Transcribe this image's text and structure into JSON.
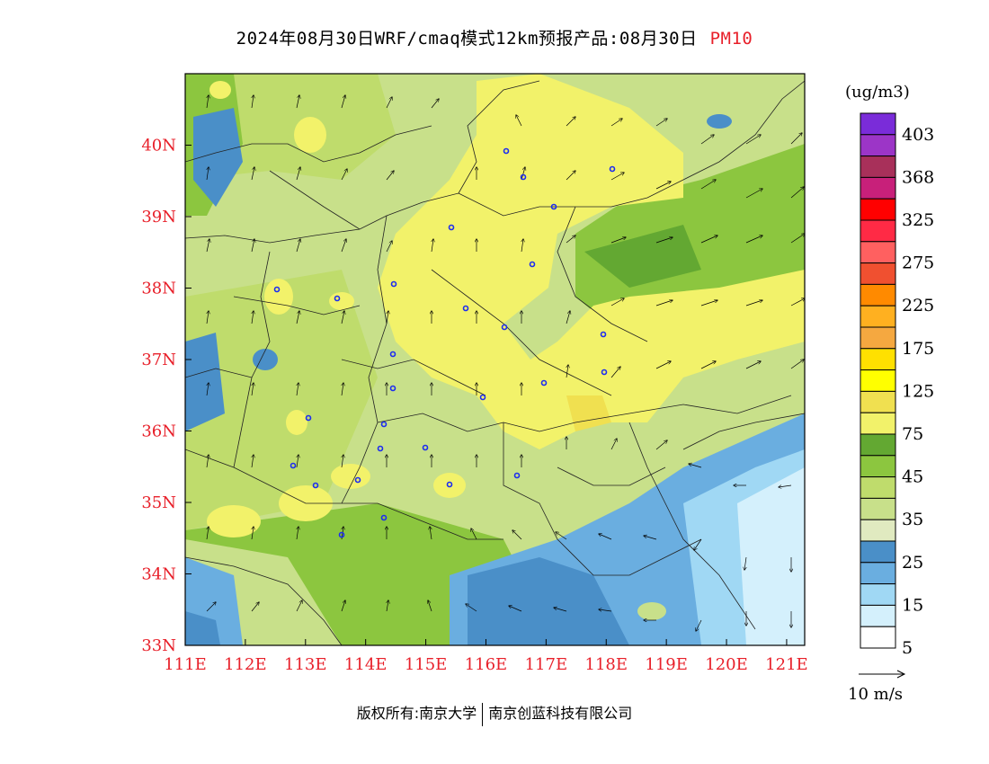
{
  "title": {
    "prefix": "2024年08月30日WRF/cmaq模式12km预报产品:08月30日",
    "variable": "PM10"
  },
  "map": {
    "lon_ticks": [
      "111E",
      "112E",
      "113E",
      "114E",
      "115E",
      "116E",
      "117E",
      "118E",
      "119E",
      "120E",
      "121E"
    ],
    "lat_ticks": [
      "33N",
      "34N",
      "35N",
      "36N",
      "37N",
      "38N",
      "39N",
      "40N"
    ],
    "lon_range": [
      111,
      121.3
    ],
    "lat_range": [
      33,
      41
    ]
  },
  "legend": {
    "unit": "(ug/m3)",
    "labels": [
      "403",
      "368",
      "325",
      "275",
      "225",
      "175",
      "125",
      "75",
      "45",
      "35",
      "25",
      "15",
      "5"
    ],
    "colors": [
      "#7a2cd9",
      "#9c35c7",
      "#a8305a",
      "#c8207a",
      "#ff0000",
      "#ff2a45",
      "#ff6060",
      "#f05030",
      "#ff8a00",
      "#ffb020",
      "#f5a840",
      "#ffe000",
      "#ffff00",
      "#f0e050",
      "#f2f26a",
      "#63a832",
      "#8cc63f",
      "#bfdc6c",
      "#c8e08a",
      "#e0eac0",
      "#4a8fc8",
      "#6aaee0",
      "#a0d8f4",
      "#d4f0fc",
      "#ffffff"
    ]
  },
  "wind_reference": {
    "label": "10 m/s"
  },
  "footer": {
    "left": "版权所有:南京大学",
    "right": "南京创蓝科技有限公司"
  }
}
